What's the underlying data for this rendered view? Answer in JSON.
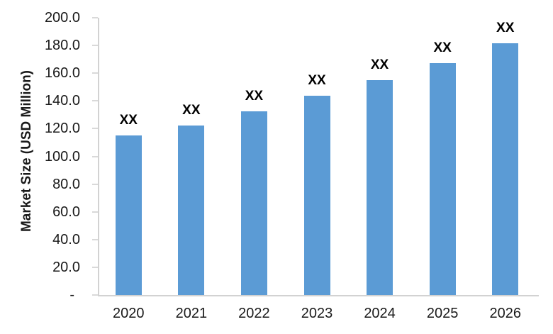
{
  "chart_data": {
    "type": "bar",
    "title": "",
    "xlabel": "",
    "ylabel": "Market Size (USD Million)",
    "categories": [
      "2020",
      "2021",
      "2022",
      "2023",
      "2024",
      "2025",
      "2026"
    ],
    "series": [
      {
        "name": "Market Size",
        "values": [
          115,
          122.5,
          132.5,
          143.5,
          155,
          167.5,
          181.5
        ],
        "data_labels": [
          "XX",
          "XX",
          "XX",
          "XX",
          "XX",
          "XX",
          "XX"
        ]
      }
    ],
    "ylim": [
      0,
      200
    ],
    "ytick_step": 20,
    "ytick_labels": [
      "200.0",
      "180.0",
      "160.0",
      "140.0",
      "120.0",
      "100.0",
      "80.0",
      "60.0",
      "40.0",
      "20.0",
      "-"
    ],
    "grid": false,
    "legend": null,
    "colors": {
      "bar_fill": "#5B9BD5",
      "axis_line": "#D2D2D2",
      "tick_mark": "#D9D9D9",
      "axis_text": "#1A1A1A",
      "data_label_text": "#000000",
      "background": "#FFFFFF"
    }
  }
}
